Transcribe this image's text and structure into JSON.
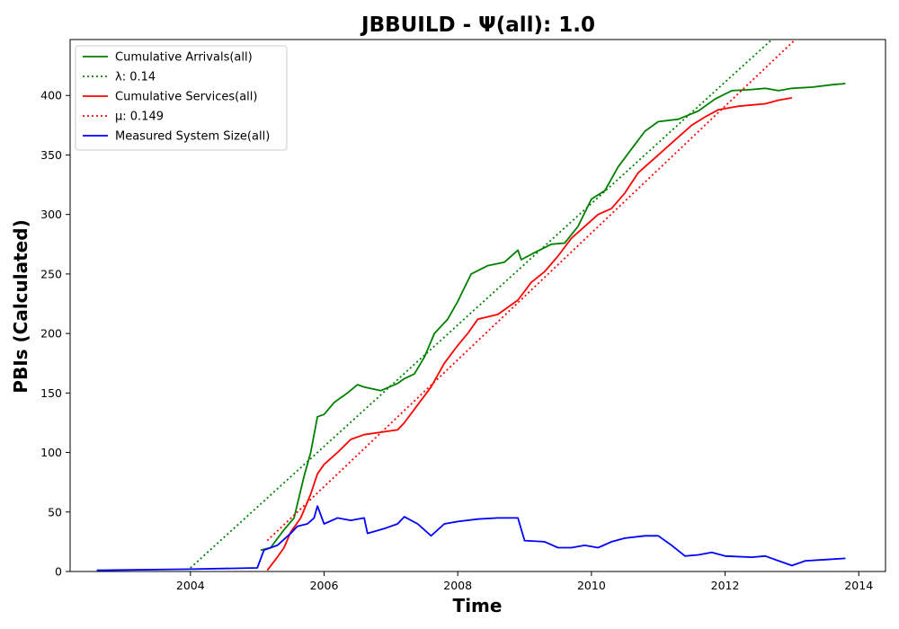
{
  "chart_data": {
    "type": "line",
    "title": "JBBUILD -  Ψ(all): 1.0",
    "xlabel": "Time",
    "ylabel": "PBIs (Calculated)",
    "xlim": [
      2002.2,
      2014.4
    ],
    "ylim": [
      0,
      447
    ],
    "x_ticks": [
      2004,
      2006,
      2008,
      2010,
      2012,
      2014
    ],
    "x_tick_labels": [
      "2004",
      "2006",
      "2008",
      "2010",
      "2012",
      "2014"
    ],
    "y_ticks": [
      0,
      50,
      100,
      150,
      200,
      250,
      300,
      350,
      400
    ],
    "y_tick_labels": [
      "0",
      "50",
      "100",
      "150",
      "200",
      "250",
      "300",
      "350",
      "400"
    ],
    "grid": false,
    "legend_position": "top-left",
    "series": [
      {
        "name": "Cumulative Arrivals(all)",
        "color": "#008000",
        "style": "solid",
        "points": [
          [
            2005.05,
            18
          ],
          [
            2005.2,
            20
          ],
          [
            2005.4,
            35
          ],
          [
            2005.55,
            45
          ],
          [
            2005.7,
            80
          ],
          [
            2005.8,
            100
          ],
          [
            2005.9,
            130
          ],
          [
            2006.0,
            132
          ],
          [
            2006.15,
            142
          ],
          [
            2006.35,
            150
          ],
          [
            2006.5,
            157
          ],
          [
            2006.6,
            155
          ],
          [
            2006.85,
            152
          ],
          [
            2007.1,
            158
          ],
          [
            2007.2,
            162
          ],
          [
            2007.35,
            166
          ],
          [
            2007.5,
            180
          ],
          [
            2007.65,
            200
          ],
          [
            2007.85,
            212
          ],
          [
            2008.0,
            227
          ],
          [
            2008.2,
            250
          ],
          [
            2008.45,
            257
          ],
          [
            2008.7,
            260
          ],
          [
            2008.9,
            270
          ],
          [
            2008.95,
            262
          ],
          [
            2009.15,
            268
          ],
          [
            2009.4,
            275
          ],
          [
            2009.6,
            276
          ],
          [
            2009.8,
            290
          ],
          [
            2010.0,
            313
          ],
          [
            2010.2,
            320
          ],
          [
            2010.4,
            340
          ],
          [
            2010.6,
            355
          ],
          [
            2010.8,
            370
          ],
          [
            2011.0,
            378
          ],
          [
            2011.3,
            380
          ],
          [
            2011.6,
            387
          ],
          [
            2011.85,
            397
          ],
          [
            2012.1,
            404
          ],
          [
            2012.4,
            405
          ],
          [
            2012.6,
            406
          ],
          [
            2012.8,
            404
          ],
          [
            2013.0,
            406
          ],
          [
            2013.3,
            407
          ],
          [
            2013.6,
            409
          ],
          [
            2013.8,
            410
          ]
        ]
      },
      {
        "name": "λ: 0.14",
        "color": "#008000",
        "style": "dotted",
        "points": [
          [
            2004.0,
            3
          ],
          [
            2012.7,
            447
          ]
        ]
      },
      {
        "name": "Cumulative Services(all)",
        "color": "#ff0000",
        "style": "solid",
        "points": [
          [
            2005.15,
            1
          ],
          [
            2005.3,
            12
          ],
          [
            2005.4,
            20
          ],
          [
            2005.5,
            33
          ],
          [
            2005.65,
            45
          ],
          [
            2005.8,
            65
          ],
          [
            2005.9,
            82
          ],
          [
            2006.0,
            90
          ],
          [
            2006.2,
            100
          ],
          [
            2006.4,
            111
          ],
          [
            2006.6,
            115
          ],
          [
            2006.85,
            117
          ],
          [
            2007.1,
            119
          ],
          [
            2007.2,
            125
          ],
          [
            2007.4,
            140
          ],
          [
            2007.6,
            155
          ],
          [
            2007.8,
            175
          ],
          [
            2008.0,
            190
          ],
          [
            2008.15,
            200
          ],
          [
            2008.3,
            212
          ],
          [
            2008.6,
            216
          ],
          [
            2008.9,
            228
          ],
          [
            2009.1,
            243
          ],
          [
            2009.3,
            252
          ],
          [
            2009.5,
            265
          ],
          [
            2009.7,
            280
          ],
          [
            2009.9,
            290
          ],
          [
            2010.1,
            300
          ],
          [
            2010.3,
            305
          ],
          [
            2010.5,
            318
          ],
          [
            2010.7,
            335
          ],
          [
            2010.9,
            345
          ],
          [
            2011.1,
            355
          ],
          [
            2011.3,
            365
          ],
          [
            2011.5,
            375
          ],
          [
            2011.7,
            382
          ],
          [
            2011.9,
            388
          ],
          [
            2012.2,
            391
          ],
          [
            2012.6,
            393
          ],
          [
            2012.8,
            396
          ],
          [
            2013.0,
            398
          ]
        ]
      },
      {
        "name": "μ: 0.149",
        "color": "#ff0000",
        "style": "dotted",
        "points": [
          [
            2005.15,
            26
          ],
          [
            2013.05,
            447
          ]
        ]
      },
      {
        "name": "Measured System Size(all)",
        "color": "#0000ff",
        "style": "solid",
        "points": [
          [
            2002.6,
            1
          ],
          [
            2004.0,
            2
          ],
          [
            2005.0,
            3
          ],
          [
            2005.1,
            18
          ],
          [
            2005.3,
            22
          ],
          [
            2005.5,
            32
          ],
          [
            2005.6,
            38
          ],
          [
            2005.75,
            40
          ],
          [
            2005.85,
            45
          ],
          [
            2005.9,
            55
          ],
          [
            2006.0,
            40
          ],
          [
            2006.2,
            45
          ],
          [
            2006.4,
            43
          ],
          [
            2006.6,
            45
          ],
          [
            2006.65,
            32
          ],
          [
            2006.9,
            36
          ],
          [
            2007.1,
            40
          ],
          [
            2007.2,
            46
          ],
          [
            2007.4,
            40
          ],
          [
            2007.6,
            30
          ],
          [
            2007.8,
            40
          ],
          [
            2008.0,
            42
          ],
          [
            2008.3,
            44
          ],
          [
            2008.6,
            45
          ],
          [
            2008.9,
            45
          ],
          [
            2009.0,
            26
          ],
          [
            2009.3,
            25
          ],
          [
            2009.5,
            20
          ],
          [
            2009.7,
            20
          ],
          [
            2009.9,
            22
          ],
          [
            2010.1,
            20
          ],
          [
            2010.3,
            25
          ],
          [
            2010.5,
            28
          ],
          [
            2010.8,
            30
          ],
          [
            2011.0,
            30
          ],
          [
            2011.2,
            22
          ],
          [
            2011.4,
            13
          ],
          [
            2011.6,
            14
          ],
          [
            2011.8,
            16
          ],
          [
            2012.0,
            13
          ],
          [
            2012.4,
            12
          ],
          [
            2012.6,
            13
          ],
          [
            2012.8,
            9
          ],
          [
            2013.0,
            5
          ],
          [
            2013.2,
            9
          ],
          [
            2013.5,
            10
          ],
          [
            2013.8,
            11
          ]
        ]
      }
    ]
  }
}
